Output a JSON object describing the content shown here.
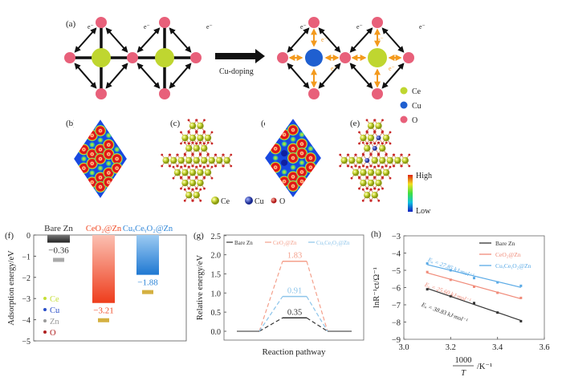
{
  "panel_labels": {
    "a": "(a)",
    "b": "(b)",
    "c": "(c)",
    "d": "(d)",
    "e": "(e)",
    "f": "(f)",
    "g": "(g)",
    "h": "(h)"
  },
  "panel_a": {
    "electron_label": "e⁻",
    "arrow_label": "Cu-doping",
    "legend": [
      {
        "label": "Ce",
        "color": "#bfd630"
      },
      {
        "label": "Cu",
        "color": "#1f5fd0"
      },
      {
        "label": "O",
        "color": "#e8607a"
      }
    ],
    "bond_color": "#111111",
    "transfer_color": "#f39a1e"
  },
  "panels_bcde": {
    "legend": [
      {
        "label": "Ce",
        "color": "#c8d83a"
      },
      {
        "label": "Cu",
        "color": "#2a3fa8"
      },
      {
        "label": "O",
        "color": "#c82828"
      }
    ],
    "colorbar": {
      "high": "High",
      "low": "Low"
    }
  },
  "chart_data": [
    {
      "panel": "f",
      "type": "bar",
      "categories": [
        "Bare Zn",
        "CeO₂@Zn",
        "CuₓCeᵧO₂@Zn"
      ],
      "values": [
        -0.36,
        -3.21,
        -1.88
      ],
      "value_labels": [
        "−0.36",
        "−3.21",
        "−1.88"
      ],
      "colors": [
        "#333333",
        "#f04a25",
        "#2f86d8"
      ],
      "ylabel": "Adsorption energy/eV",
      "ylim": [
        -5,
        0
      ],
      "yticks": [
        "0",
        "−1",
        "−2",
        "−3",
        "−4",
        "−5"
      ],
      "legend": [
        {
          "label": "Ce",
          "color": "#c5df35"
        },
        {
          "label": "Cu",
          "color": "#2a4fc8"
        },
        {
          "label": "Zn",
          "color": "#9a9a9a"
        },
        {
          "label": "O",
          "color": "#b02020"
        }
      ]
    },
    {
      "panel": "g",
      "type": "line",
      "xlabel": "Reaction pathway",
      "ylabel": "Relative energy/eV",
      "ylim": [
        0,
        2.5
      ],
      "yticks": [
        "0.0",
        "0.5",
        "1.0",
        "1.5",
        "2.0",
        "2.5"
      ],
      "series": [
        {
          "name": "Bare Zn",
          "barrier": 0.35,
          "label": "0.35",
          "color": "#333333"
        },
        {
          "name": "CeO₂@Zn",
          "barrier": 1.83,
          "label": "1.83",
          "color": "#f4a08c"
        },
        {
          "name": "CuₓCeᵧO₂@Zn",
          "barrier": 0.91,
          "label": "0.91",
          "color": "#8cc4ea"
        }
      ],
      "legend": "top"
    },
    {
      "panel": "h",
      "type": "scatter",
      "xlabel_num": "1000",
      "xlabel_den": "T",
      "xlabel_unit": "/K⁻¹",
      "ylabel": "lnR⁻¹ct/Ω⁻¹",
      "xlim": [
        3.0,
        3.6
      ],
      "ylim": [
        -9,
        -3
      ],
      "xticks": [
        "3.0",
        "3.2",
        "3.4",
        "3.6"
      ],
      "yticks": [
        "−3",
        "−4",
        "−5",
        "−6",
        "−7",
        "−8",
        "−9"
      ],
      "x": [
        3.1,
        3.2,
        3.3,
        3.4,
        3.5
      ],
      "series": [
        {
          "name": "Bare Zn",
          "values": [
            -6.1,
            -6.5,
            -6.9,
            -7.45,
            -7.95
          ],
          "annotation": "Eₐ = 38.83 kJ·mol⁻¹",
          "color": "#333333"
        },
        {
          "name": "CeO₂@Zn",
          "values": [
            -5.1,
            -5.55,
            -5.95,
            -6.3,
            -6.6
          ],
          "annotation": "Eₐ = 25.60 kJ·mol⁻¹",
          "color": "#f08a78"
        },
        {
          "name": "CuₓCeᵧO₂@Zn",
          "values": [
            -4.6,
            -5.0,
            -5.45,
            -5.7,
            -5.9
          ],
          "annotation": "Eₐ = 27.85 kJ·mol⁻¹",
          "color": "#5aaae6"
        }
      ],
      "legend": "top-right"
    }
  ]
}
